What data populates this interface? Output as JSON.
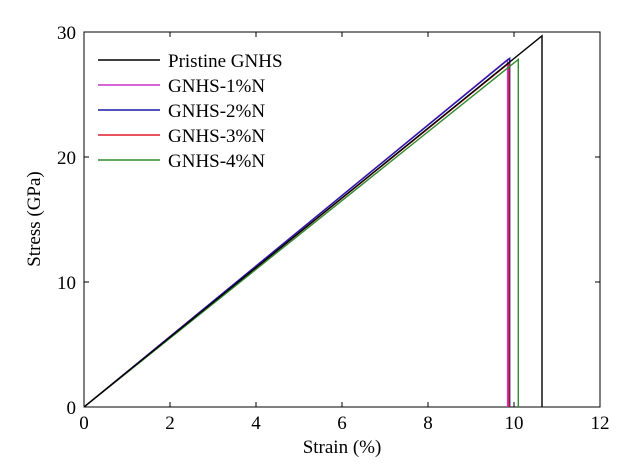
{
  "chart_data": {
    "type": "line",
    "xlabel": "Strain (%)",
    "ylabel": "Stress (GPa)",
    "xlim": [
      0,
      12
    ],
    "ylim": [
      0,
      30
    ],
    "xticks": [
      "0",
      "2",
      "4",
      "6",
      "8",
      "10",
      "12"
    ],
    "yticks": [
      "0",
      "10",
      "20",
      "30"
    ],
    "grid": false,
    "legend_position": "top-left",
    "series": [
      {
        "name": "Pristine GNHS",
        "color": "#000000",
        "x": [
          0,
          10.65,
          10.65
        ],
        "y": [
          0,
          29.7,
          0
        ]
      },
      {
        "name": "GNHS-1%N",
        "color": "#cc33cc",
        "x": [
          0,
          9.85,
          9.85
        ],
        "y": [
          0,
          27.8,
          0
        ]
      },
      {
        "name": "GNHS-2%N",
        "color": "#1a1aa6",
        "x": [
          0,
          9.9,
          9.9
        ],
        "y": [
          0,
          27.9,
          0
        ]
      },
      {
        "name": "GNHS-3%N",
        "color": "#e01b2a",
        "x": [
          0,
          9.88,
          9.88
        ],
        "y": [
          0,
          27.5,
          0
        ]
      },
      {
        "name": "GNHS-4%N",
        "color": "#2e8b2e",
        "x": [
          0,
          10.1,
          10.1
        ],
        "y": [
          0,
          27.8,
          0
        ]
      }
    ]
  }
}
